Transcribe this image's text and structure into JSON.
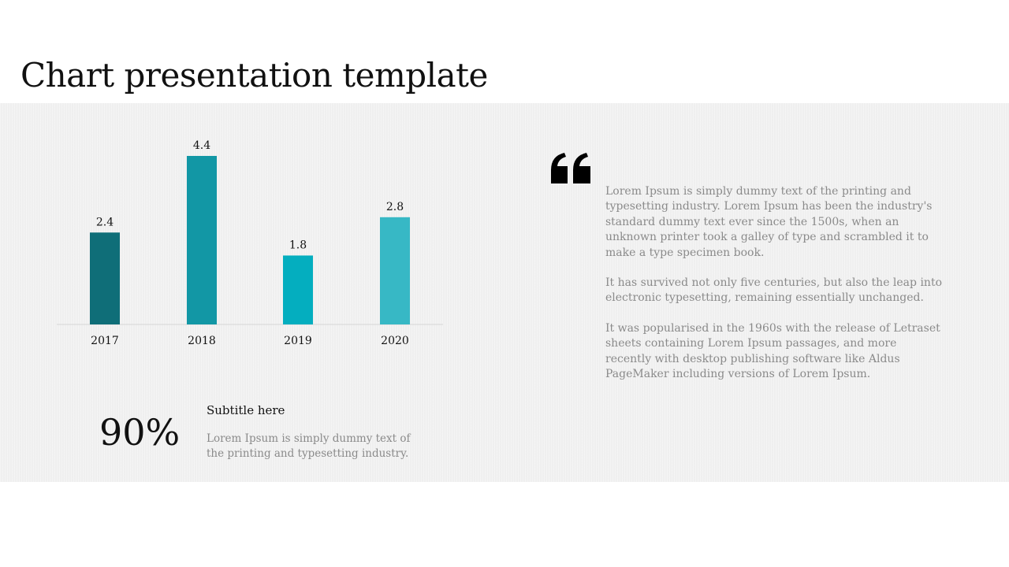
{
  "slide": {
    "title": "Chart presentation template"
  },
  "stat": {
    "value": "90%",
    "subtitle": "Subtitle here",
    "text": "Lorem Ipsum is simply dummy text of the printing and typesetting industry."
  },
  "quote": {
    "icon": "quote-icon",
    "paragraphs": [
      "Lorem Ipsum is simply dummy text of the printing and typesetting industry. Lorem Ipsum has been the industry's standard dummy text ever since the 1500s, when an unknown printer took a galley of type and scrambled it to make a type specimen book.",
      "It has survived not only five centuries, but also the leap into electronic typesetting, remaining essentially unchanged.",
      "It was popularised in the 1960s with the release of Letraset sheets containing Lorem Ipsum passages, and more recently with desktop publishing software like Aldus PageMaker including versions of Lorem Ipsum."
    ]
  },
  "chart_data": {
    "type": "bar",
    "categories": [
      "2017",
      "2018",
      "2019",
      "2020"
    ],
    "values": [
      2.4,
      4.4,
      1.8,
      2.8
    ],
    "colors": [
      "#0f6e78",
      "#1297a5",
      "#04aebf",
      "#37b8c5"
    ],
    "axis_color": "#d6d6d6",
    "title": "",
    "xlabel": "",
    "ylabel": "",
    "ylim": [
      0,
      4.4
    ],
    "grid": false,
    "data_labels": true
  }
}
